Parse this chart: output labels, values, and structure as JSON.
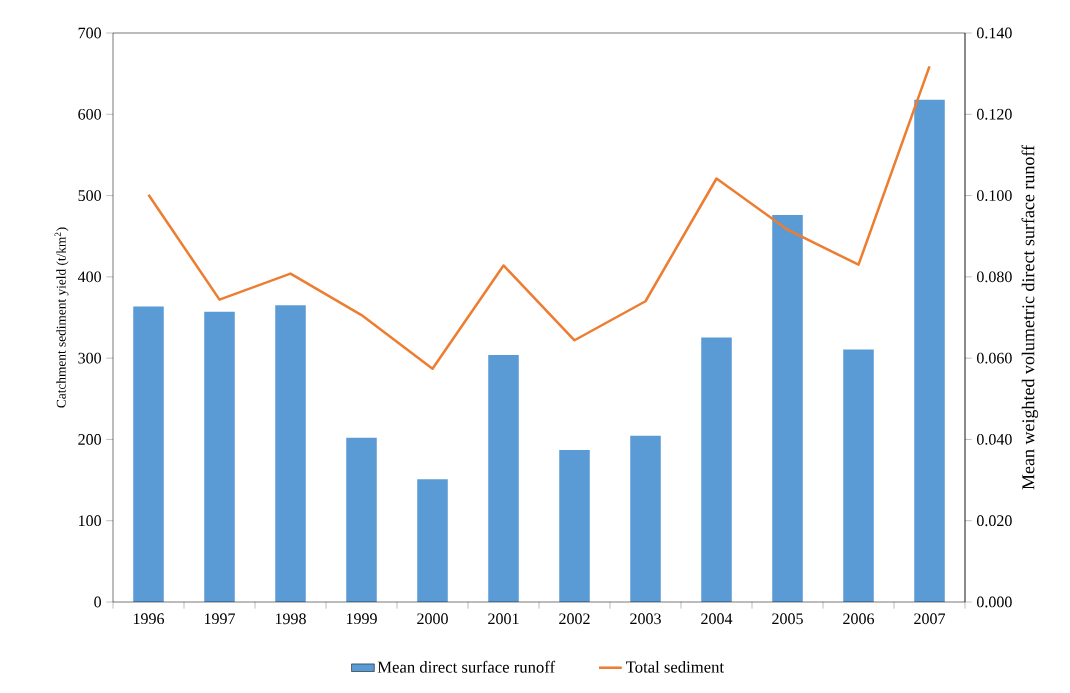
{
  "chart_data": {
    "type": "bar",
    "categories": [
      "1996",
      "1997",
      "1998",
      "1999",
      "2000",
      "2001",
      "2002",
      "2003",
      "2004",
      "2005",
      "2006",
      "2007"
    ],
    "series": [
      {
        "name": "Mean direct surface runoff",
        "axis": "y2",
        "color": "#5b9bd5",
        "values": [
          0.0727,
          0.0714,
          0.073,
          0.0404,
          0.0302,
          0.0608,
          0.0374,
          0.0409,
          0.0651,
          0.0952,
          0.0621,
          0.1236
        ]
      },
      {
        "name": "Total sediment",
        "type": "line",
        "color": "#ed7d31",
        "values": [
          501,
          372,
          404,
          353,
          287,
          414,
          322,
          370,
          521,
          458,
          415,
          659
        ]
      }
    ],
    "ylabel": "Catchment sediment yield (t/km$^{2}$)",
    "y2label": "Mean weighted volumetric direct surface runoff",
    "ylim": [
      0,
      700
    ],
    "yticks": [
      0,
      100,
      200,
      300,
      400,
      500,
      600,
      700
    ],
    "y2lim": [
      0,
      0.14
    ],
    "y2ticks": [
      {
        "value": 0,
        "label": "0.000"
      },
      {
        "value": 0.02,
        "label": "0.020"
      },
      {
        "value": 0.04,
        "label": "0.040"
      },
      {
        "value": 0.06,
        "label": "0.060"
      },
      {
        "value": 0.08,
        "label": "0.080"
      },
      {
        "value": 0.1,
        "label": "0.100"
      },
      {
        "value": 0.12,
        "label": "0.120"
      },
      {
        "value": 0.14,
        "label": "0.140"
      }
    ],
    "legend": "bottom",
    "grid": false,
    "marker": "none"
  }
}
